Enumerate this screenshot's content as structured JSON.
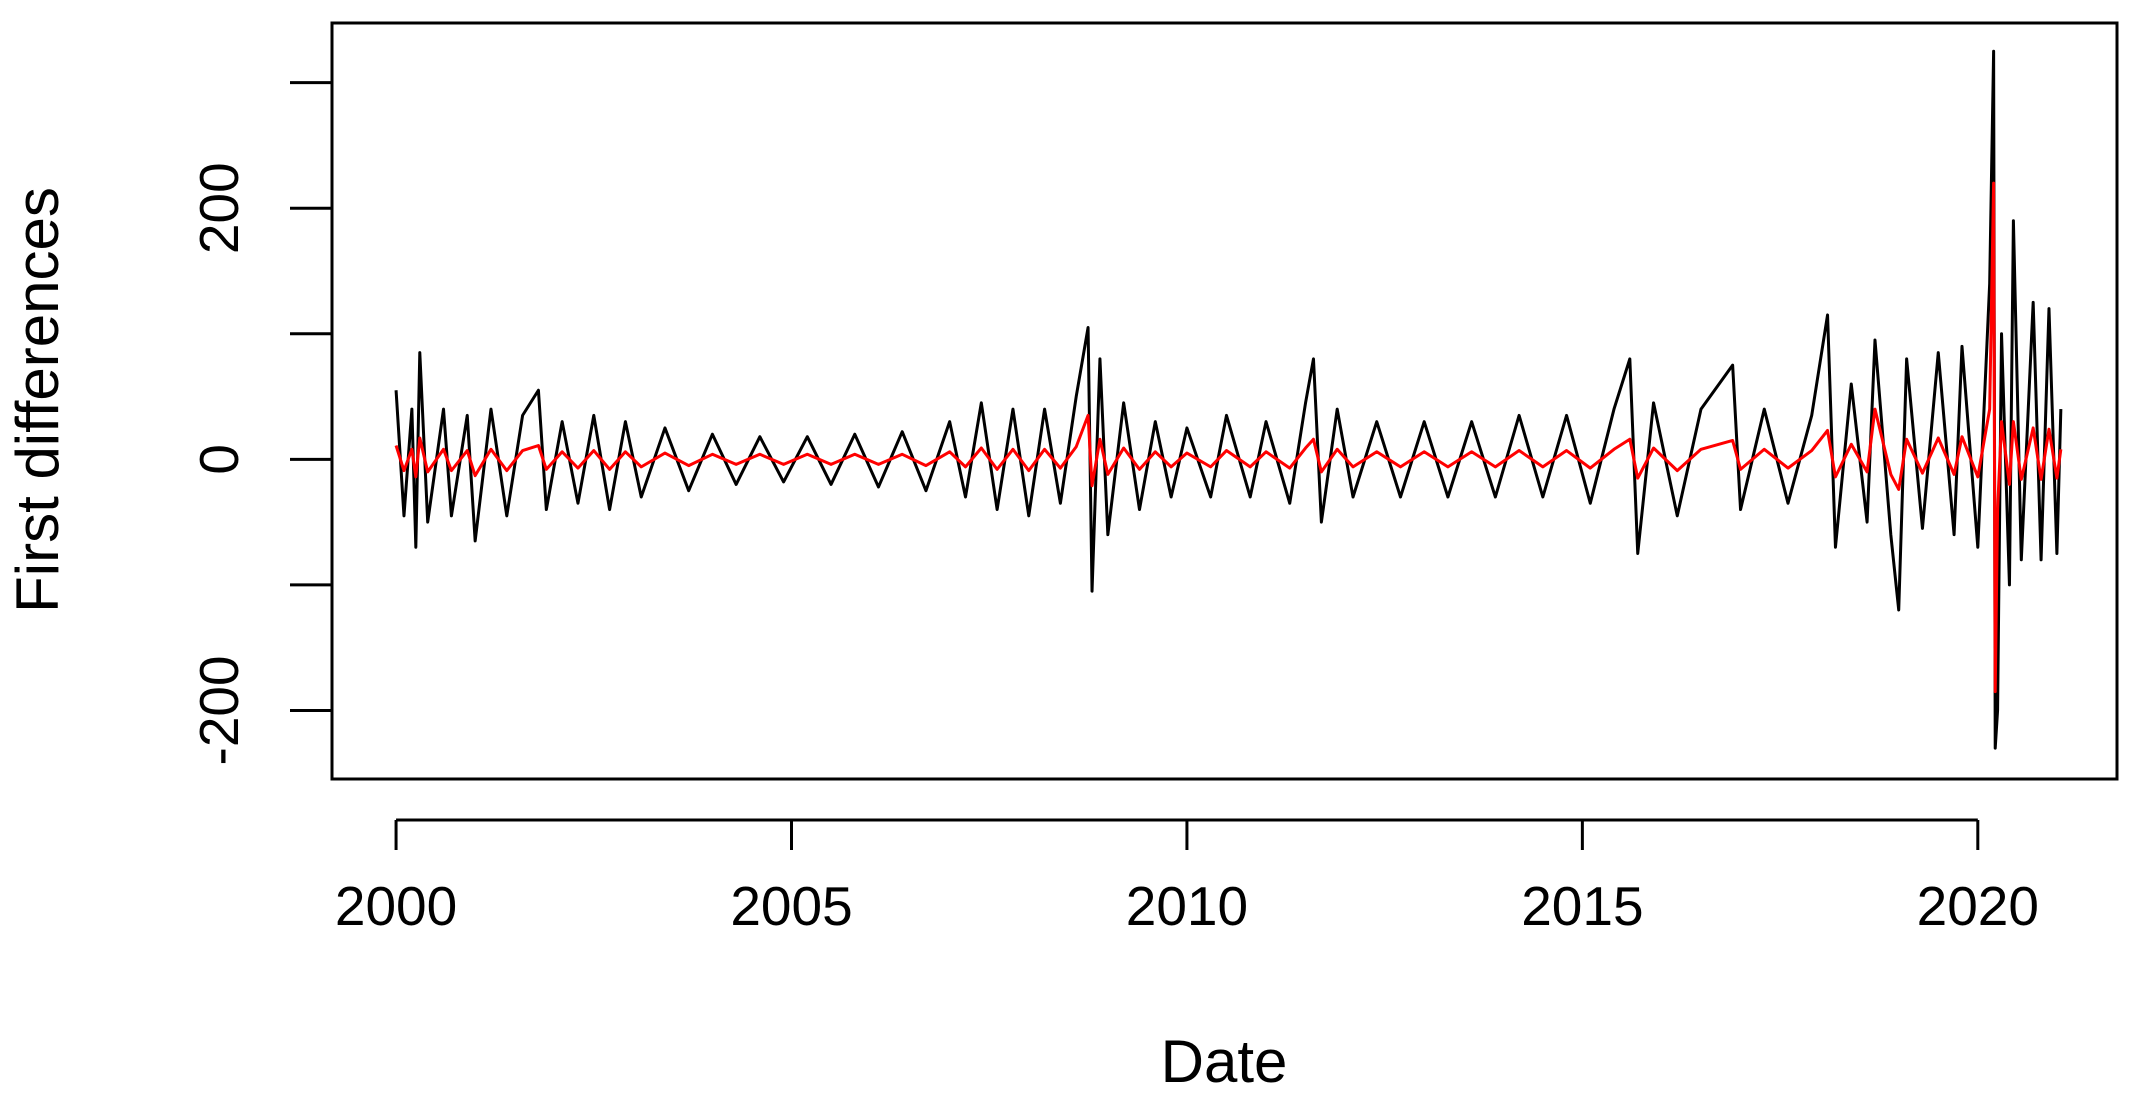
{
  "chart_data": {
    "type": "line",
    "x_label": "Date",
    "y_label": "First differences",
    "x": [
      2000.0,
      2000.1,
      2000.2,
      2000.25,
      2000.3,
      2000.4,
      2000.6,
      2000.7,
      2000.9,
      2001.0,
      2001.2,
      2001.4,
      2001.6,
      2001.8,
      2001.9,
      2002.1,
      2002.3,
      2002.5,
      2002.7,
      2002.9,
      2003.1,
      2003.4,
      2003.7,
      2004.0,
      2004.3,
      2004.6,
      2004.9,
      2005.2,
      2005.5,
      2005.8,
      2006.1,
      2006.4,
      2006.7,
      2007.0,
      2007.2,
      2007.4,
      2007.6,
      2007.8,
      2008.0,
      2008.2,
      2008.4,
      2008.6,
      2008.75,
      2008.8,
      2008.9,
      2009.0,
      2009.2,
      2009.4,
      2009.6,
      2009.8,
      2010.0,
      2010.3,
      2010.5,
      2010.8,
      2011.0,
      2011.3,
      2011.5,
      2011.6,
      2011.7,
      2011.9,
      2012.1,
      2012.4,
      2012.7,
      2013.0,
      2013.3,
      2013.6,
      2013.9,
      2014.2,
      2014.5,
      2014.8,
      2015.1,
      2015.4,
      2015.6,
      2015.7,
      2015.9,
      2016.2,
      2016.5,
      2016.9,
      2017.0,
      2017.3,
      2017.6,
      2017.9,
      2018.1,
      2018.2,
      2018.4,
      2018.6,
      2018.7,
      2018.9,
      2019.0,
      2019.1,
      2019.3,
      2019.5,
      2019.7,
      2019.8,
      2020.0,
      2020.15,
      2020.2,
      2020.22,
      2020.25,
      2020.3,
      2020.4,
      2020.45,
      2020.55,
      2020.7,
      2020.8,
      2020.9,
      2021.0,
      2021.05
    ],
    "series": [
      {
        "color": "#000000",
        "values": [
          55,
          -45,
          40,
          -70,
          85,
          -50,
          40,
          -45,
          35,
          -65,
          40,
          -45,
          35,
          55,
          -40,
          30,
          -35,
          35,
          -40,
          30,
          -30,
          25,
          -25,
          20,
          -20,
          18,
          -18,
          18,
          -20,
          20,
          -22,
          22,
          -25,
          30,
          -30,
          45,
          -40,
          40,
          -45,
          40,
          -35,
          50,
          105,
          -105,
          80,
          -60,
          45,
          -40,
          30,
          -30,
          25,
          -30,
          35,
          -30,
          30,
          -35,
          45,
          80,
          -50,
          40,
          -30,
          30,
          -30,
          30,
          -30,
          30,
          -30,
          35,
          -30,
          35,
          -35,
          40,
          80,
          -75,
          45,
          -45,
          40,
          75,
          -40,
          40,
          -35,
          35,
          115,
          -70,
          60,
          -50,
          95,
          -60,
          -120,
          80,
          -55,
          85,
          -60,
          90,
          -70,
          140,
          325,
          -230,
          -200,
          100,
          -100,
          190,
          -80,
          125,
          -80,
          120,
          -75,
          40
        ]
      },
      {
        "color": "#ff0000",
        "values": [
          11,
          -9,
          8,
          -14,
          17,
          -10,
          8,
          -9,
          7,
          -13,
          8,
          -9,
          7,
          11,
          -8,
          6,
          -7,
          7,
          -8,
          6,
          -6,
          5,
          -5,
          4,
          -4,
          4,
          -4,
          4,
          -4,
          4,
          -4,
          4,
          -5,
          6,
          -6,
          9,
          -8,
          8,
          -9,
          8,
          -7,
          10,
          35,
          -21,
          16,
          -12,
          9,
          -8,
          6,
          -6,
          5,
          -6,
          7,
          -6,
          6,
          -7,
          9,
          16,
          -10,
          8,
          -6,
          6,
          -6,
          6,
          -6,
          6,
          -6,
          7,
          -6,
          7,
          -7,
          8,
          16,
          -15,
          9,
          -9,
          8,
          15,
          -8,
          8,
          -7,
          7,
          23,
          -14,
          12,
          -10,
          40,
          -12,
          -24,
          16,
          -11,
          17,
          -12,
          18,
          -14,
          40,
          220,
          -185,
          -40,
          30,
          -20,
          30,
          -16,
          25,
          -16,
          24,
          -15,
          8
        ]
      }
    ],
    "xlim": [
      1999.19,
      2021.76
    ],
    "ylim": [
      -254.6,
      347.5
    ],
    "xticks": [
      2000,
      2005,
      2010,
      2015,
      2020
    ],
    "yticks": [
      -200,
      0,
      200
    ],
    "y_minor_ticks": [
      -100,
      100,
      300
    ]
  }
}
